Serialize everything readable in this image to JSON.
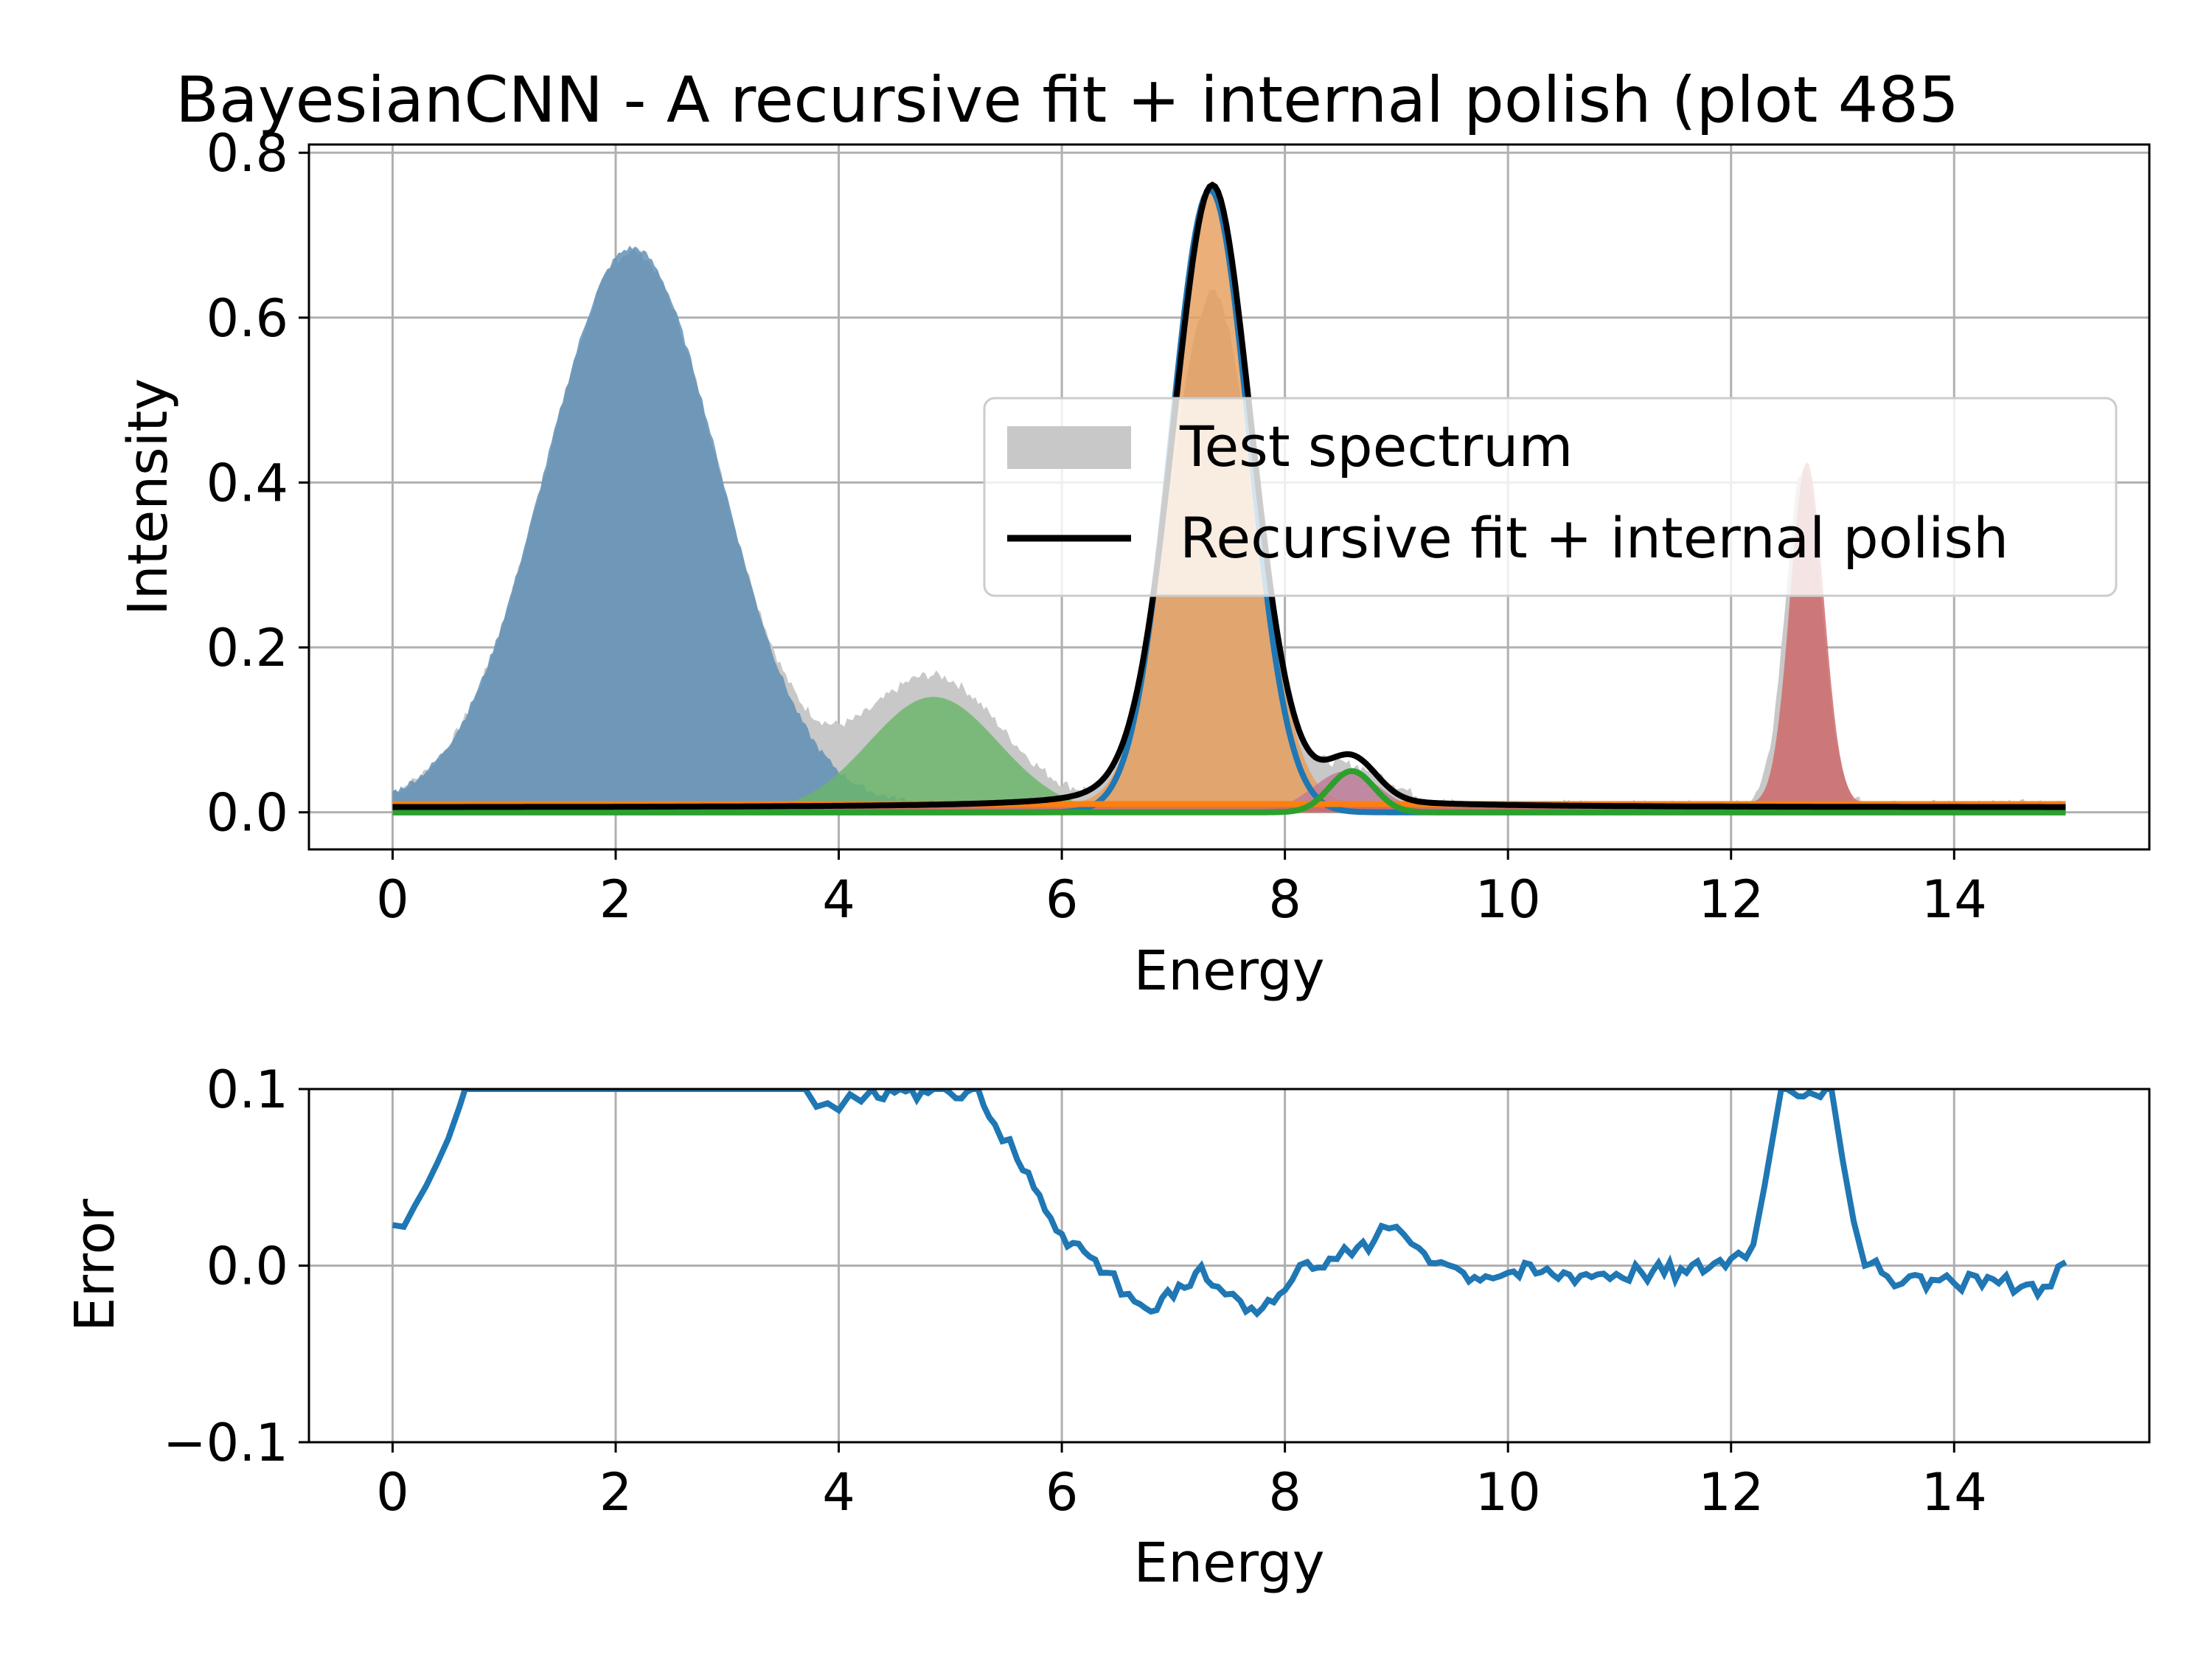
{
  "chart_data": [
    {
      "type": "area",
      "title": "BayesianCNN - A recursive fit + internal polish (plot 485",
      "xlabel": "Energy",
      "ylabel": "Intensity",
      "xlim": [
        -0.75,
        15.75
      ],
      "ylim": [
        -0.045,
        0.81
      ],
      "xticks": [
        0,
        2,
        4,
        6,
        8,
        10,
        12,
        14
      ],
      "yticks": [
        0.0,
        0.2,
        0.4,
        0.6,
        0.8
      ],
      "xtick_labels": [
        "0",
        "2",
        "4",
        "6",
        "8",
        "10",
        "12",
        "14"
      ],
      "ytick_labels": [
        "0.0",
        "0.2",
        "0.4",
        "0.6",
        "0.8"
      ],
      "grid": true,
      "legend": {
        "placement": "center-right",
        "entries": [
          {
            "label": "Test spectrum",
            "kind": "patch",
            "color": "#c8c8c8"
          },
          {
            "label": "Recursive fit + internal polish",
            "kind": "line",
            "color": "#000000"
          }
        ]
      },
      "x_range": [
        0,
        15
      ],
      "test_spectrum": {
        "color": "#c8c8c8",
        "peaks": [
          {
            "center": 2.15,
            "height": 0.67,
            "sigma": 0.78
          },
          {
            "center": 4.85,
            "height": 0.155,
            "sigma": 0.6
          },
          {
            "center": 7.35,
            "height": 0.62,
            "sigma": 0.38
          },
          {
            "center": 8.6,
            "height": 0.045,
            "sigma": 0.35
          },
          {
            "center": 12.65,
            "height": 0.41,
            "sigma": 0.16
          }
        ],
        "baseline": 0.01
      },
      "filled_components": [
        {
          "color": "#5b8db5",
          "center": 2.15,
          "height": 0.675,
          "sigma": 0.78,
          "baseline": 0.01
        },
        {
          "color": "#6ab66a",
          "center": 4.85,
          "height": 0.14,
          "sigma": 0.58,
          "baseline": 0.0
        },
        {
          "color": "#e79d5b",
          "center": 7.35,
          "height": 0.755,
          "sigma": 0.36,
          "baseline": 0.01
        },
        {
          "color": "#c07a9a",
          "center": 8.55,
          "height": 0.05,
          "sigma": 0.3,
          "baseline": 0.0
        },
        {
          "color": "#cd6666",
          "center": 12.68,
          "height": 0.415,
          "sigma": 0.15,
          "baseline": 0.01
        }
      ],
      "fit_line": {
        "color": "#000000",
        "peaks": [
          {
            "center": 7.35,
            "height": 0.755,
            "sigma": 0.36,
            "shape": "lorentz-mix"
          },
          {
            "center": 8.6,
            "height": 0.05,
            "sigma": 0.22,
            "shape": "gauss"
          }
        ],
        "baseline": 0.006
      },
      "component_lines": [
        {
          "color": "#1f77b4",
          "center": 7.33,
          "height": 0.755,
          "sigma": 0.35,
          "baseline": 0.0
        },
        {
          "color": "#ff7f0e",
          "center": 0,
          "height": 0.0,
          "sigma": 1,
          "baseline": 0.01
        },
        {
          "color": "#2ca02c",
          "center": 8.6,
          "height": 0.05,
          "sigma": 0.2,
          "baseline": 0.0
        }
      ]
    },
    {
      "type": "line",
      "xlabel": "Energy",
      "ylabel": "Error",
      "xlim": [
        -0.75,
        15.75
      ],
      "ylim": [
        -0.1,
        0.1
      ],
      "xticks": [
        0,
        2,
        4,
        6,
        8,
        10,
        12,
        14
      ],
      "yticks": [
        -0.1,
        0.0,
        0.1
      ],
      "xtick_labels": [
        "0",
        "2",
        "4",
        "6",
        "8",
        "10",
        "12",
        "14"
      ],
      "ytick_labels": [
        "−0.1",
        "0.0",
        "0.1"
      ],
      "grid": true,
      "series": [
        {
          "color": "#1f77b4",
          "x": [
            0,
            0.1,
            0.2,
            0.3,
            0.4,
            0.5,
            0.6,
            0.65,
            3.7,
            3.8,
            3.9,
            4.0,
            4.1,
            4.2,
            4.3,
            5.25,
            5.4,
            5.6,
            5.8,
            6.0,
            6.2,
            6.4,
            6.6,
            6.8,
            7.0,
            7.2,
            7.4,
            7.6,
            7.8,
            8.0,
            8.2,
            8.4,
            8.6,
            8.8,
            9.0,
            9.2,
            9.4,
            9.6,
            9.8,
            10.0,
            10.4,
            10.8,
            11.2,
            11.6,
            12.0,
            12.2,
            12.3,
            12.45,
            12.9,
            13.0,
            13.1,
            13.2,
            13.4,
            13.6,
            13.8,
            14.0,
            14.2,
            14.4,
            14.6,
            14.8,
            15.0
          ],
          "y": [
            0.023,
            0.022,
            0.034,
            0.045,
            0.058,
            0.072,
            0.09,
            0.1,
            0.1,
            0.09,
            0.092,
            0.088,
            0.097,
            0.093,
            0.1,
            0.1,
            0.08,
            0.06,
            0.04,
            0.018,
            0.008,
            -0.004,
            -0.016,
            -0.026,
            -0.018,
            -0.004,
            -0.012,
            -0.02,
            -0.024,
            -0.014,
            0.002,
            0.004,
            0.006,
            0.014,
            0.022,
            0.01,
            0.002,
            -0.004,
            -0.006,
            -0.004,
            -0.005,
            -0.005,
            -0.004,
            -0.004,
            0.004,
            0.012,
            0.045,
            0.1,
            0.1,
            0.06,
            0.025,
            0.0,
            -0.006,
            -0.006,
            -0.008,
            -0.01,
            -0.006,
            -0.01,
            -0.012,
            -0.012,
            0.002
          ]
        }
      ]
    }
  ]
}
